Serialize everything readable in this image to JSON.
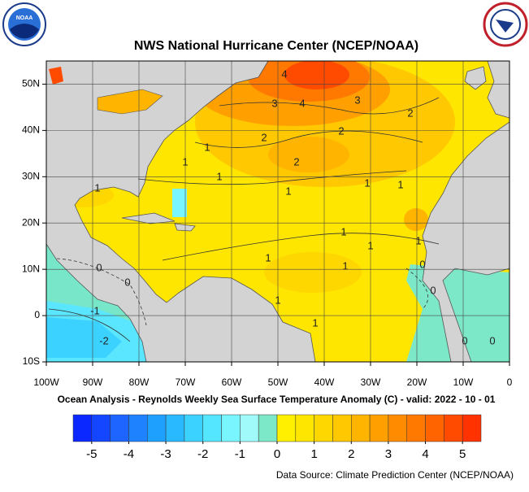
{
  "header": {
    "title": "NWS National Hurricane Center (NCEP/NOAA)",
    "logo_left": "NOAA"
  },
  "map": {
    "lat_ticks": [
      {
        "value": 50,
        "label": "50N"
      },
      {
        "value": 40,
        "label": "40N"
      },
      {
        "value": 30,
        "label": "30N"
      },
      {
        "value": 20,
        "label": "20N"
      },
      {
        "value": 10,
        "label": "10N"
      },
      {
        "value": 0,
        "label": "0"
      },
      {
        "value": -10,
        "label": "10S"
      }
    ],
    "lon_ticks": [
      {
        "value": -100,
        "label": "100W"
      },
      {
        "value": -90,
        "label": "90W"
      },
      {
        "value": -80,
        "label": "80W"
      },
      {
        "value": -70,
        "label": "70W"
      },
      {
        "value": -60,
        "label": "60W"
      },
      {
        "value": -50,
        "label": "50W"
      },
      {
        "value": -40,
        "label": "40W"
      },
      {
        "value": -30,
        "label": "30W"
      },
      {
        "value": -20,
        "label": "20W"
      },
      {
        "value": -10,
        "label": "10W"
      },
      {
        "value": 0,
        "label": "0"
      }
    ],
    "latlim": [
      -10,
      55
    ],
    "lonlim": [
      -100,
      0
    ],
    "contour_labels": [
      "4",
      "4",
      "3",
      "3",
      "2",
      "2",
      "2",
      "2",
      "1",
      "1",
      "1",
      "1",
      "1",
      "1",
      "1",
      "1",
      "1",
      "1",
      "1",
      "1",
      "1",
      "1",
      "0",
      "0",
      "0",
      "0",
      "0",
      "0",
      "-1",
      "-2"
    ],
    "subtitle": "Ocean Analysis - Reynolds Weekly Sea Surface Temperature Anomaly (C) - valid: 2022 - 10 - 01"
  },
  "colorbar": {
    "range": [
      -5.5,
      5.5
    ],
    "ticks": [
      -5,
      -4,
      -3,
      -2,
      -1,
      0,
      1,
      2,
      3,
      4,
      5
    ],
    "colors": [
      "#0a28ff",
      "#1446ff",
      "#1e64ff",
      "#1e82ff",
      "#1ea0ff",
      "#28b9ff",
      "#3cd2ff",
      "#55e6ff",
      "#78f5ff",
      "#a0fafa",
      "#7de8c8",
      "#fff000",
      "#ffe600",
      "#ffd700",
      "#ffc800",
      "#ffb400",
      "#ffa000",
      "#ff8c00",
      "#ff7800",
      "#ff6400",
      "#ff4b00",
      "#ff3200"
    ]
  },
  "footer": {
    "source": "Data Source: Climate Prediction Center (NCEP/NOAA)"
  }
}
